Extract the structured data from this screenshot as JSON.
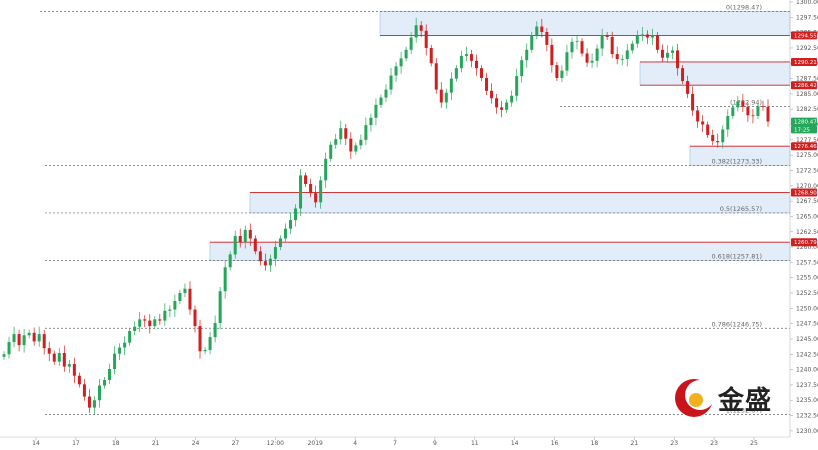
{
  "chart_data": {
    "type": "candlestick",
    "ylim": [
      1229.0,
      1300.0
    ],
    "y_ticks": [
      1230.0,
      1232.5,
      1235.0,
      1237.5,
      1240.0,
      1242.5,
      1245.0,
      1247.5,
      1250.0,
      1252.5,
      1255.0,
      1257.5,
      1260.0,
      1262.5,
      1265.0,
      1267.5,
      1270.0,
      1272.5,
      1275.0,
      1277.5,
      1280.0,
      1282.5,
      1285.0,
      1287.5,
      1290.0,
      1292.5,
      1295.0,
      1297.5,
      1300.0
    ],
    "x_ticks": [
      "14",
      "17",
      "18",
      "21",
      "24",
      "27",
      "12:00",
      "2019",
      "4",
      "7",
      "9",
      "11",
      "14",
      "16",
      "18",
      "21",
      "23",
      "23",
      "25"
    ],
    "fib_levels": [
      {
        "label": "0(1298.47)",
        "value": 1298.47
      },
      {
        "label": "0.382(1273.33)",
        "value": 1273.33
      },
      {
        "label": "0.5(1265.57)",
        "value": 1265.57
      },
      {
        "label": "0.618(1257.81)",
        "value": 1257.81
      },
      {
        "label": "0.786(1246.75)",
        "value": 1246.75
      },
      {
        "label": "1(1232.67)",
        "value": 1232.67
      },
      {
        "label": "(1282.94)",
        "value": 1282.94
      }
    ],
    "price_badges": [
      {
        "label": "1294.55",
        "value": 1294.55,
        "color": "#d01f1f"
      },
      {
        "label": "1290.21",
        "value": 1290.21,
        "color": "#d01f1f"
      },
      {
        "label": "1286.42",
        "value": 1286.42,
        "color": "#d01f1f"
      },
      {
        "label": "1280.47",
        "value": 1280.47,
        "color": "#26a65b"
      },
      {
        "label": "17:25",
        "value": 1279.2,
        "color": "#26a65b"
      },
      {
        "label": "1276.46",
        "value": 1276.46,
        "color": "#d01f1f"
      },
      {
        "label": "1268.90",
        "value": 1268.9,
        "color": "#d01f1f"
      },
      {
        "label": "1260.79",
        "value": 1260.79,
        "color": "#d01f1f"
      }
    ],
    "zones": [
      {
        "from": 1294.55,
        "to": 1298.47
      },
      {
        "from": 1286.42,
        "to": 1290.21
      },
      {
        "from": 1273.33,
        "to": 1276.46
      },
      {
        "from": 1265.57,
        "to": 1268.9
      },
      {
        "from": 1257.81,
        "to": 1260.79
      }
    ],
    "up_color": "#26a65b",
    "down_color": "#d01f1f",
    "close_path": [
      1242.5,
      1244.5,
      1245.8,
      1244.0,
      1245.6,
      1246.0,
      1244.6,
      1245.8,
      1243.5,
      1242.6,
      1241.3,
      1242.7,
      1240.5,
      1240.9,
      1239.0,
      1237.6,
      1235.6,
      1233.8,
      1235.0,
      1237.4,
      1238.3,
      1240.1,
      1242.6,
      1243.6,
      1244.4,
      1246.3,
      1247.0,
      1248.2,
      1248.0,
      1247.1,
      1248.2,
      1248.0,
      1249.6,
      1249.8,
      1251.2,
      1252.5,
      1253.2,
      1249.8,
      1247.1,
      1243.0,
      1243.2,
      1245.3,
      1247.6,
      1252.8,
      1256.7,
      1258.8,
      1261.8,
      1260.8,
      1262.8,
      1261.4,
      1259.3,
      1257.7,
      1257.0,
      1258.1,
      1260.0,
      1261.4,
      1263.0,
      1264.4,
      1266.3,
      1271.7,
      1270.3,
      1268.8,
      1267.3,
      1270.9,
      1274.4,
      1276.7,
      1277.6,
      1279.4,
      1277.7,
      1275.6,
      1276.6,
      1277.5,
      1279.9,
      1281.1,
      1283.2,
      1284.4,
      1285.7,
      1288.0,
      1289.5,
      1290.8,
      1292.2,
      1294.2,
      1296.2,
      1295.3,
      1292.5,
      1290.0,
      1285.7,
      1283.6,
      1285.2,
      1287.5,
      1289.2,
      1291.2,
      1291.5,
      1290.4,
      1289.2,
      1287.6,
      1285.5,
      1284.3,
      1282.8,
      1282.4,
      1283.6,
      1284.7,
      1287.9,
      1290.5,
      1292.2,
      1294.6,
      1296.0,
      1295.1,
      1293.0,
      1289.7,
      1287.6,
      1288.8,
      1291.8,
      1293.5,
      1293.6,
      1291.6,
      1290.1,
      1290.4,
      1292.4,
      1294.6,
      1294.3,
      1291.5,
      1290.7,
      1290.7,
      1292.1,
      1293.2,
      1294.5,
      1294.7,
      1294.2,
      1294.6,
      1292.2,
      1290.9,
      1291.7,
      1292.1,
      1289.2,
      1287.1,
      1285.0,
      1282.3,
      1280.5,
      1280.0,
      1278.3,
      1277.3,
      1277.1,
      1279.2,
      1281.4,
      1282.8,
      1283.8,
      1282.9,
      1281.5,
      1281.4,
      1283.0,
      1282.9,
      1280.5
    ]
  },
  "brand": {
    "name": "金盛"
  }
}
